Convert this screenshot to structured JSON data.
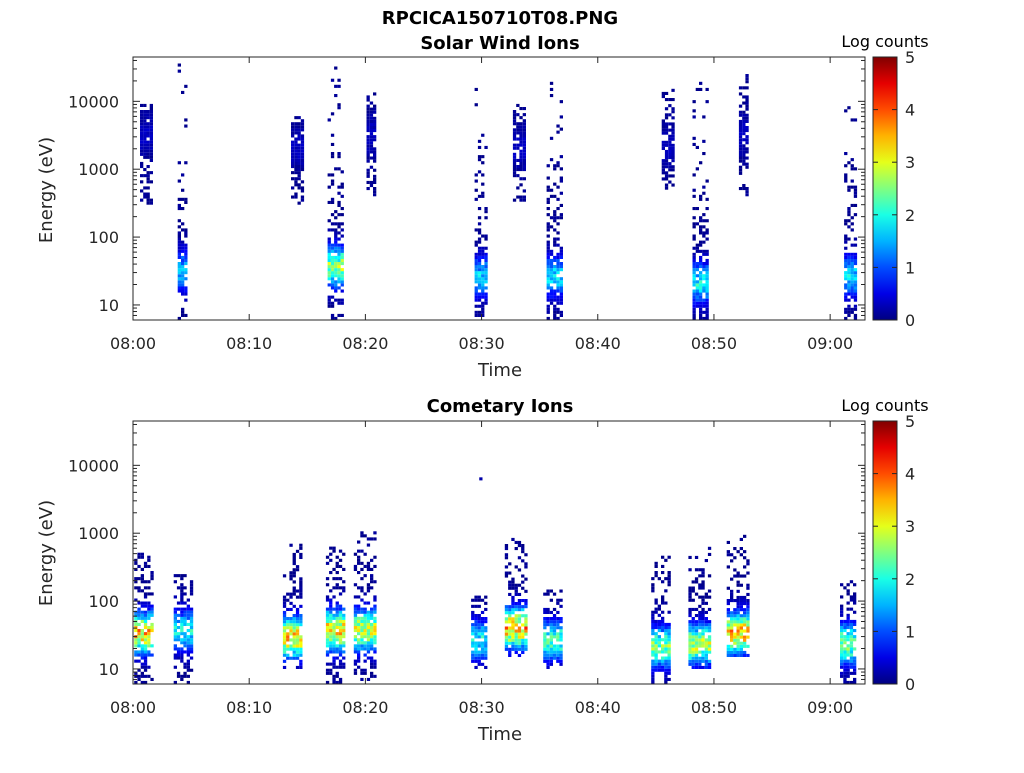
{
  "figure": {
    "title": "RPCICA150710T08.PNG"
  },
  "panels": [
    {
      "id": "solar-wind",
      "title": "Solar Wind Ions",
      "xlabel": "Time",
      "ylabel": "Energy (eV)",
      "colorbar_label": "Log counts",
      "x_ticks": [
        "08:00",
        "08:10",
        "08:20",
        "08:30",
        "08:40",
        "08:50",
        "09:00"
      ],
      "y_ticks": [
        "10",
        "100",
        "1000",
        "10000"
      ]
    },
    {
      "id": "cometary",
      "title": "Cometary Ions",
      "xlabel": "Time",
      "ylabel": "Energy (eV)",
      "colorbar_label": "Log counts",
      "x_ticks": [
        "08:00",
        "08:10",
        "08:20",
        "08:30",
        "08:40",
        "08:50",
        "09:00"
      ],
      "y_ticks": [
        "10",
        "100",
        "1000",
        "10000"
      ]
    }
  ],
  "colorbar_ticks": [
    "0",
    "1",
    "2",
    "3",
    "4",
    "5"
  ],
  "chart_data": [
    {
      "type": "heatmap",
      "title": "Solar Wind Ions",
      "xlabel": "Time",
      "ylabel": "Energy (eV)",
      "x_range_minutes_after_0800": [
        0,
        63
      ],
      "y_range_eV": [
        6,
        45000
      ],
      "y_scale": "log",
      "colorbar": {
        "label": "Log counts",
        "range": [
          0,
          5
        ],
        "colormap": "jet"
      },
      "bursts": [
        {
          "t": 1.2,
          "width": 1.2,
          "e_min": 300,
          "e_max": 9000,
          "peak_e": 3000,
          "peak_log": 0.3
        },
        {
          "t": 4.3,
          "width": 0.9,
          "e_min": 6,
          "e_max": 35000,
          "peak_e": 30,
          "peak_log": 1.8
        },
        {
          "t": 14.2,
          "width": 1.2,
          "e_min": 300,
          "e_max": 6000,
          "peak_e": 2000,
          "peak_log": 0.3
        },
        {
          "t": 17.4,
          "width": 1.3,
          "e_min": 6,
          "e_max": 30000,
          "peak_e": 35,
          "peak_log": 3.1
        },
        {
          "t": 20.5,
          "width": 0.8,
          "e_min": 400,
          "e_max": 14000,
          "peak_e": 3000,
          "peak_log": 0.3
        },
        {
          "t": 30.0,
          "width": 1.2,
          "e_min": 6,
          "e_max": 15000,
          "peak_e": 25,
          "peak_log": 1.9
        },
        {
          "t": 33.2,
          "width": 1.0,
          "e_min": 300,
          "e_max": 9000,
          "peak_e": 2000,
          "peak_log": 0.3
        },
        {
          "t": 36.3,
          "width": 1.4,
          "e_min": 6,
          "e_max": 20000,
          "peak_e": 25,
          "peak_log": 2.0
        },
        {
          "t": 46.0,
          "width": 1.0,
          "e_min": 500,
          "e_max": 15000,
          "peak_e": 2000,
          "peak_log": 0.3
        },
        {
          "t": 48.8,
          "width": 1.3,
          "e_min": 6,
          "e_max": 18000,
          "peak_e": 20,
          "peak_log": 2.2
        },
        {
          "t": 52.6,
          "width": 0.9,
          "e_min": 400,
          "e_max": 24000,
          "peak_e": 3000,
          "peak_log": 0.3
        },
        {
          "t": 61.8,
          "width": 1.2,
          "e_min": 6,
          "e_max": 14000,
          "peak_e": 25,
          "peak_log": 2.0
        }
      ]
    },
    {
      "type": "heatmap",
      "title": "Cometary Ions",
      "xlabel": "Time",
      "ylabel": "Energy (eV)",
      "x_range_minutes_after_0800": [
        0,
        63
      ],
      "y_range_eV": [
        6,
        45000
      ],
      "y_scale": "log",
      "colorbar": {
        "label": "Log counts",
        "range": [
          0,
          5
        ],
        "colormap": "jet"
      },
      "bursts": [
        {
          "t": 1.0,
          "width": 1.8,
          "e_min": 6,
          "e_max": 700,
          "peak_e": 32,
          "peak_log": 4.0
        },
        {
          "t": 4.3,
          "width": 1.6,
          "e_min": 6,
          "e_max": 250,
          "peak_e": 35,
          "peak_log": 2.2
        },
        {
          "t": 13.8,
          "width": 1.8,
          "e_min": 10,
          "e_max": 800,
          "peak_e": 28,
          "peak_log": 4.0
        },
        {
          "t": 17.5,
          "width": 1.8,
          "e_min": 6,
          "e_max": 700,
          "peak_e": 35,
          "peak_log": 4.0
        },
        {
          "t": 20.0,
          "width": 2.0,
          "e_min": 6,
          "e_max": 1000,
          "peak_e": 35,
          "peak_log": 3.5
        },
        {
          "t": 29.8,
          "width": 1.4,
          "e_min": 10,
          "e_max": 120,
          "peak_e": 25,
          "peak_log": 2.2
        },
        {
          "t": 33.0,
          "width": 2.0,
          "e_min": 15,
          "e_max": 850,
          "peak_e": 38,
          "peak_log": 4.2
        },
        {
          "t": 36.2,
          "width": 1.8,
          "e_min": 10,
          "e_max": 140,
          "peak_e": 25,
          "peak_log": 2.6
        },
        {
          "t": 45.5,
          "width": 1.8,
          "e_min": 6,
          "e_max": 500,
          "peak_e": 20,
          "peak_log": 3.0
        },
        {
          "t": 48.8,
          "width": 2.0,
          "e_min": 10,
          "e_max": 600,
          "peak_e": 22,
          "peak_log": 3.3
        },
        {
          "t": 52.1,
          "width": 2.0,
          "e_min": 15,
          "e_max": 900,
          "peak_e": 32,
          "peak_log": 4.1
        },
        {
          "t": 61.6,
          "width": 1.5,
          "e_min": 6,
          "e_max": 200,
          "peak_e": 22,
          "peak_log": 3.0
        }
      ],
      "isolated_points": [
        {
          "t": 29.8,
          "e": 6000,
          "log": 0.2
        }
      ]
    }
  ]
}
